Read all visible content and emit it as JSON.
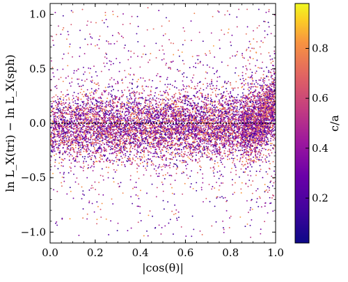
{
  "chart_data": {
    "type": "scatter",
    "title": "",
    "xlabel": "|cos(θ)|",
    "ylabel": "ln L_X(tri) − ln L_X(sph)",
    "xlim": [
      0.0,
      1.0
    ],
    "ylim": [
      -1.1,
      1.1
    ],
    "x_ticks": [
      {
        "value": 0.0,
        "label": "0.0"
      },
      {
        "value": 0.2,
        "label": "0.2"
      },
      {
        "value": 0.4,
        "label": "0.4"
      },
      {
        "value": 0.6,
        "label": "0.6"
      },
      {
        "value": 0.8,
        "label": "0.8"
      },
      {
        "value": 1.0,
        "label": "1.0"
      }
    ],
    "y_ticks": [
      {
        "value": -1.0,
        "label": "−1.0"
      },
      {
        "value": -0.5,
        "label": "−0.5"
      },
      {
        "value": 0.0,
        "label": "0.0"
      },
      {
        "value": 0.5,
        "label": "0.5"
      },
      {
        "value": 1.0,
        "label": "1.0"
      }
    ],
    "reference_line": {
      "y": 0.0,
      "style": "dotted",
      "color": "#000000"
    },
    "grid": false,
    "colorbar": {
      "label": "c/a",
      "colormap": "plasma",
      "range": [
        0.02,
        0.98
      ],
      "ticks": [
        {
          "value": 0.2,
          "label": "0.2"
        },
        {
          "value": 0.4,
          "label": "0.4"
        },
        {
          "value": 0.6,
          "label": "0.6"
        },
        {
          "value": 0.8,
          "label": "0.8"
        }
      ]
    },
    "distribution": {
      "description_of_trend": "dense band around y≈0; spread grows and band lifts upward as |cos(θ)|→1",
      "center_y": 0.0,
      "core_spread": 0.15,
      "tail_extent": 1.05,
      "rise_start_x": 0.85,
      "rise_amount_at_x1": 0.3,
      "approx_point_count": 9000
    }
  }
}
